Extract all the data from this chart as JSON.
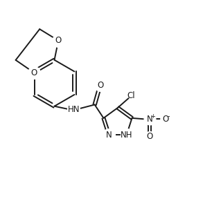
{
  "bg_color": "#ffffff",
  "line_color": "#1a1a1a",
  "line_width": 1.4,
  "font_size": 8.5,
  "fig_width": 3.19,
  "fig_height": 3.01,
  "dpi": 100,
  "xlim": [
    0,
    10
  ],
  "ylim": [
    0,
    9.4
  ]
}
